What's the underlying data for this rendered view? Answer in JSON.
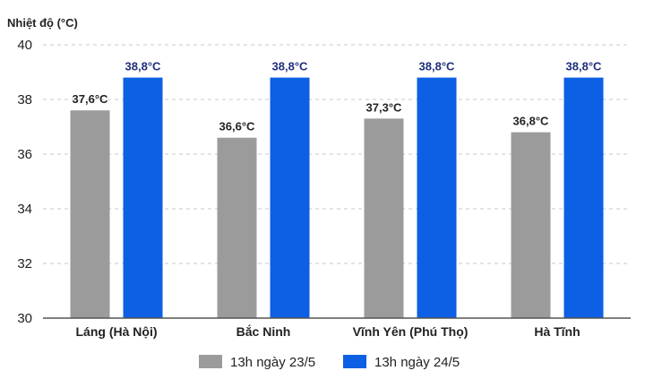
{
  "chart_data": {
    "type": "bar",
    "ylabel": "Nhiệt độ (°C)",
    "ylim": [
      30,
      40
    ],
    "yticks": [
      30,
      32,
      34,
      36,
      38,
      40
    ],
    "grid": true,
    "legend_position": "bottom",
    "categories": [
      "Láng (Hà Nội)",
      "Bắc Ninh",
      "Vĩnh Yên (Phú Thọ)",
      "Hà Tĩnh"
    ],
    "series": [
      {
        "name": "13h ngày 23/5",
        "color": "#9b9b9b",
        "values": [
          37.6,
          36.6,
          37.3,
          36.8
        ],
        "labels": [
          "37,6°C",
          "36,6°C",
          "37,3°C",
          "36,8°C"
        ]
      },
      {
        "name": "13h ngày 24/5",
        "color": "#0d5fe3",
        "values": [
          38.8,
          38.8,
          38.8,
          38.8
        ],
        "labels": [
          "38,8°C",
          "38,8°C",
          "38,8°C",
          "38,8°C"
        ]
      }
    ]
  }
}
